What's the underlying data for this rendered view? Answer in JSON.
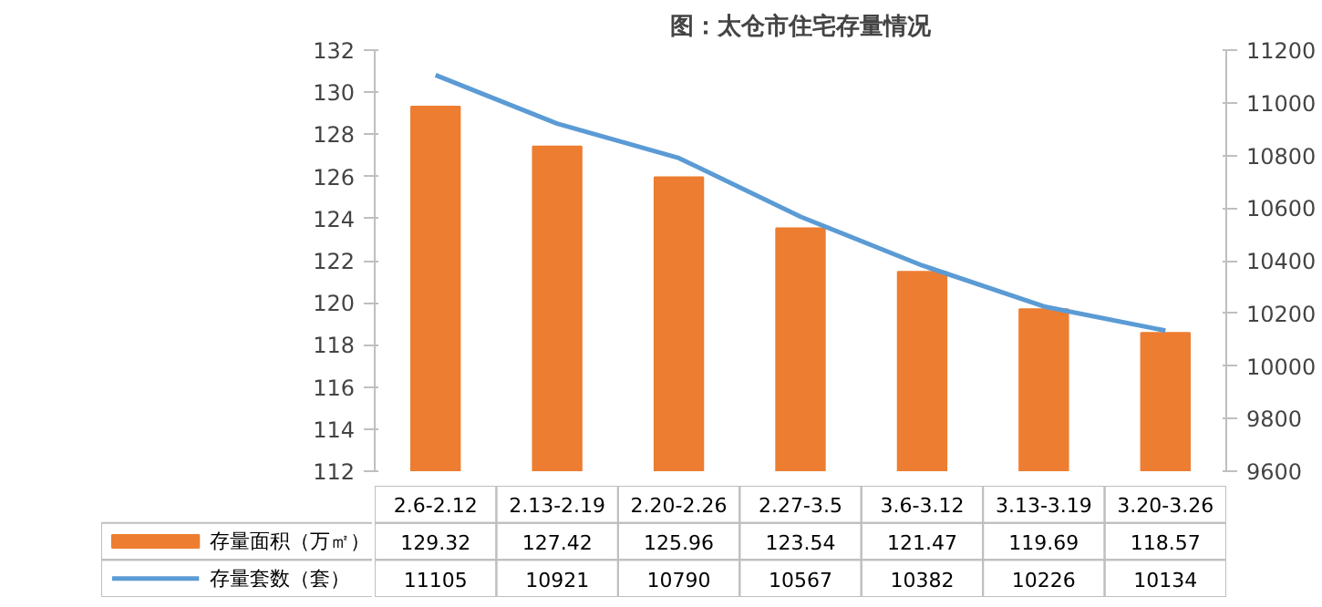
{
  "chart_data": {
    "type": "bar",
    "title": "图：太仓市住宅存量情况",
    "categories": [
      "2.6-2.12",
      "2.13-2.19",
      "2.20-2.26",
      "2.27-3.5",
      "3.6-3.12",
      "3.13-3.19",
      "3.20-3.26"
    ],
    "series": [
      {
        "name": "存量面积（万㎡）",
        "color": "#ed7d31",
        "values": [
          129.32,
          127.42,
          125.96,
          123.54,
          121.47,
          119.69,
          118.57
        ]
      },
      {
        "name": "存量套数（套）",
        "type": "line",
        "axis": "y2",
        "color": "#5b9bd5",
        "values": [
          11105,
          10921,
          10790,
          10567,
          10382,
          10226,
          10134
        ]
      }
    ],
    "ylim": [
      112,
      132
    ],
    "yticks": [
      112,
      114,
      116,
      118,
      120,
      122,
      124,
      126,
      128,
      130,
      132
    ],
    "y2lim": [
      9600,
      11200
    ],
    "y2ticks": [
      9600,
      9800,
      10000,
      10200,
      10400,
      10600,
      10800,
      11000,
      11200
    ],
    "grid": false,
    "legend": "bottom",
    "data_labels": true
  }
}
